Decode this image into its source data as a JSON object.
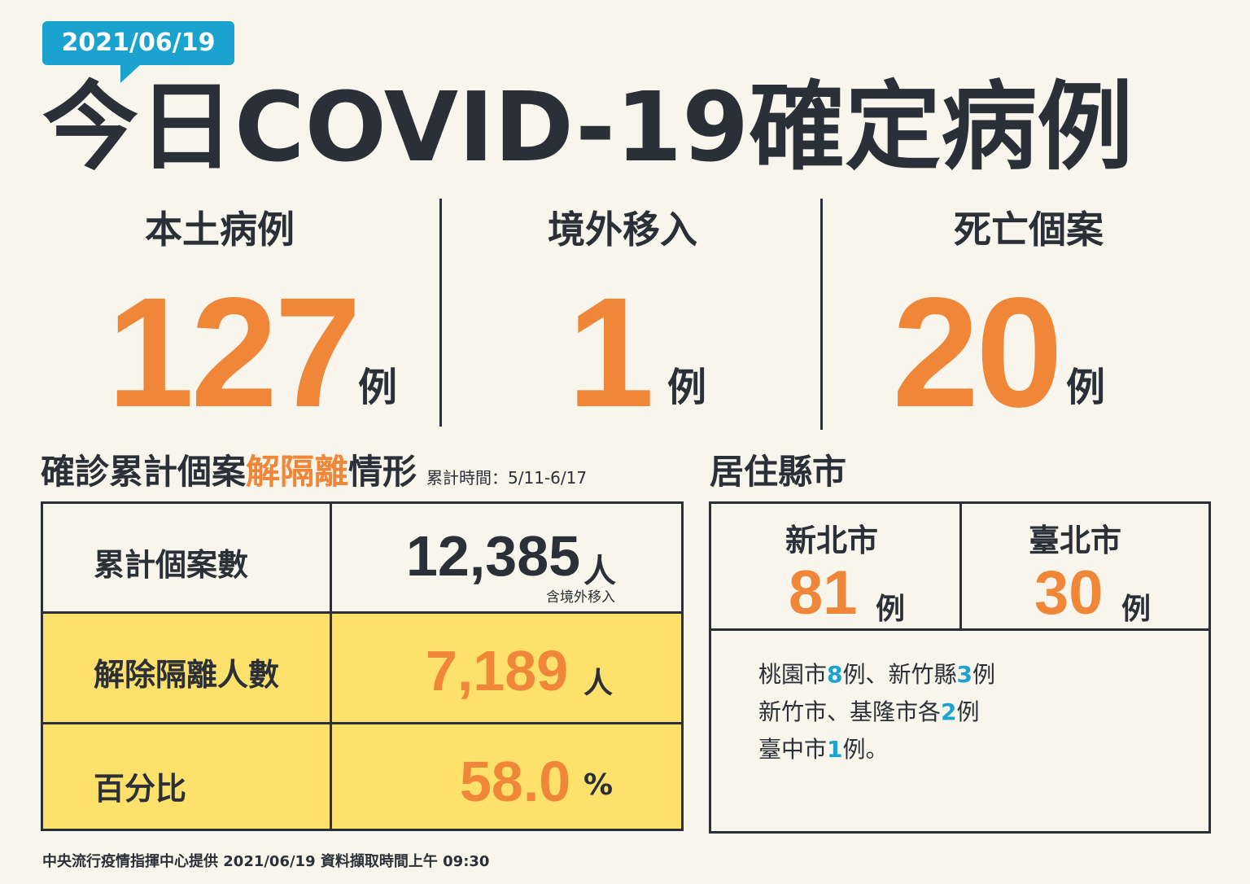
{
  "date": "2021/06/19",
  "title": "今日COVID-19確定病例",
  "stats": [
    {
      "label": "本土病例",
      "value": "127",
      "unit": "例"
    },
    {
      "label": "境外移入",
      "value": "1",
      "unit": "例"
    },
    {
      "label": "死亡個案",
      "value": "20",
      "unit": "例"
    }
  ],
  "release_section": {
    "heading_pre": "確診累計個案",
    "heading_highlight": "解隔離",
    "heading_post": "情形",
    "period_note": "累計時間：5/11-6/17",
    "rows": [
      {
        "label": "累計個案數",
        "value": "12,385",
        "unit": "人",
        "note": "含境外移入"
      },
      {
        "label": "解除隔離人數",
        "value": "7,189",
        "unit": "人"
      },
      {
        "label": "百分比",
        "value": "58.0",
        "unit": "%"
      }
    ]
  },
  "city_section": {
    "heading": "居住縣市",
    "cities": [
      {
        "name": "新北市",
        "value": "81",
        "unit": "例"
      },
      {
        "name": "臺北市",
        "value": "30",
        "unit": "例"
      }
    ],
    "others": [
      [
        {
          "t": "桃園市"
        },
        {
          "t": "8",
          "hl": true
        },
        {
          "t": "例、新竹縣"
        },
        {
          "t": "3",
          "hl": true
        },
        {
          "t": "例"
        }
      ],
      [
        {
          "t": "新竹市、基隆市各"
        },
        {
          "t": "2",
          "hl": true
        },
        {
          "t": "例"
        }
      ],
      [
        {
          "t": "臺中市"
        },
        {
          "t": "1",
          "hl": true
        },
        {
          "t": "例。"
        }
      ]
    ]
  },
  "footer": "中央流行疫情指揮中心提供 2021/06/19 資料擷取時間上午 09:30",
  "colors": {
    "accent_orange": "#ef8638",
    "accent_blue": "#1aa3cf",
    "highlight_yellow": "#fde16b",
    "text_dark": "#2b3038",
    "background": "#f8f5ec"
  }
}
